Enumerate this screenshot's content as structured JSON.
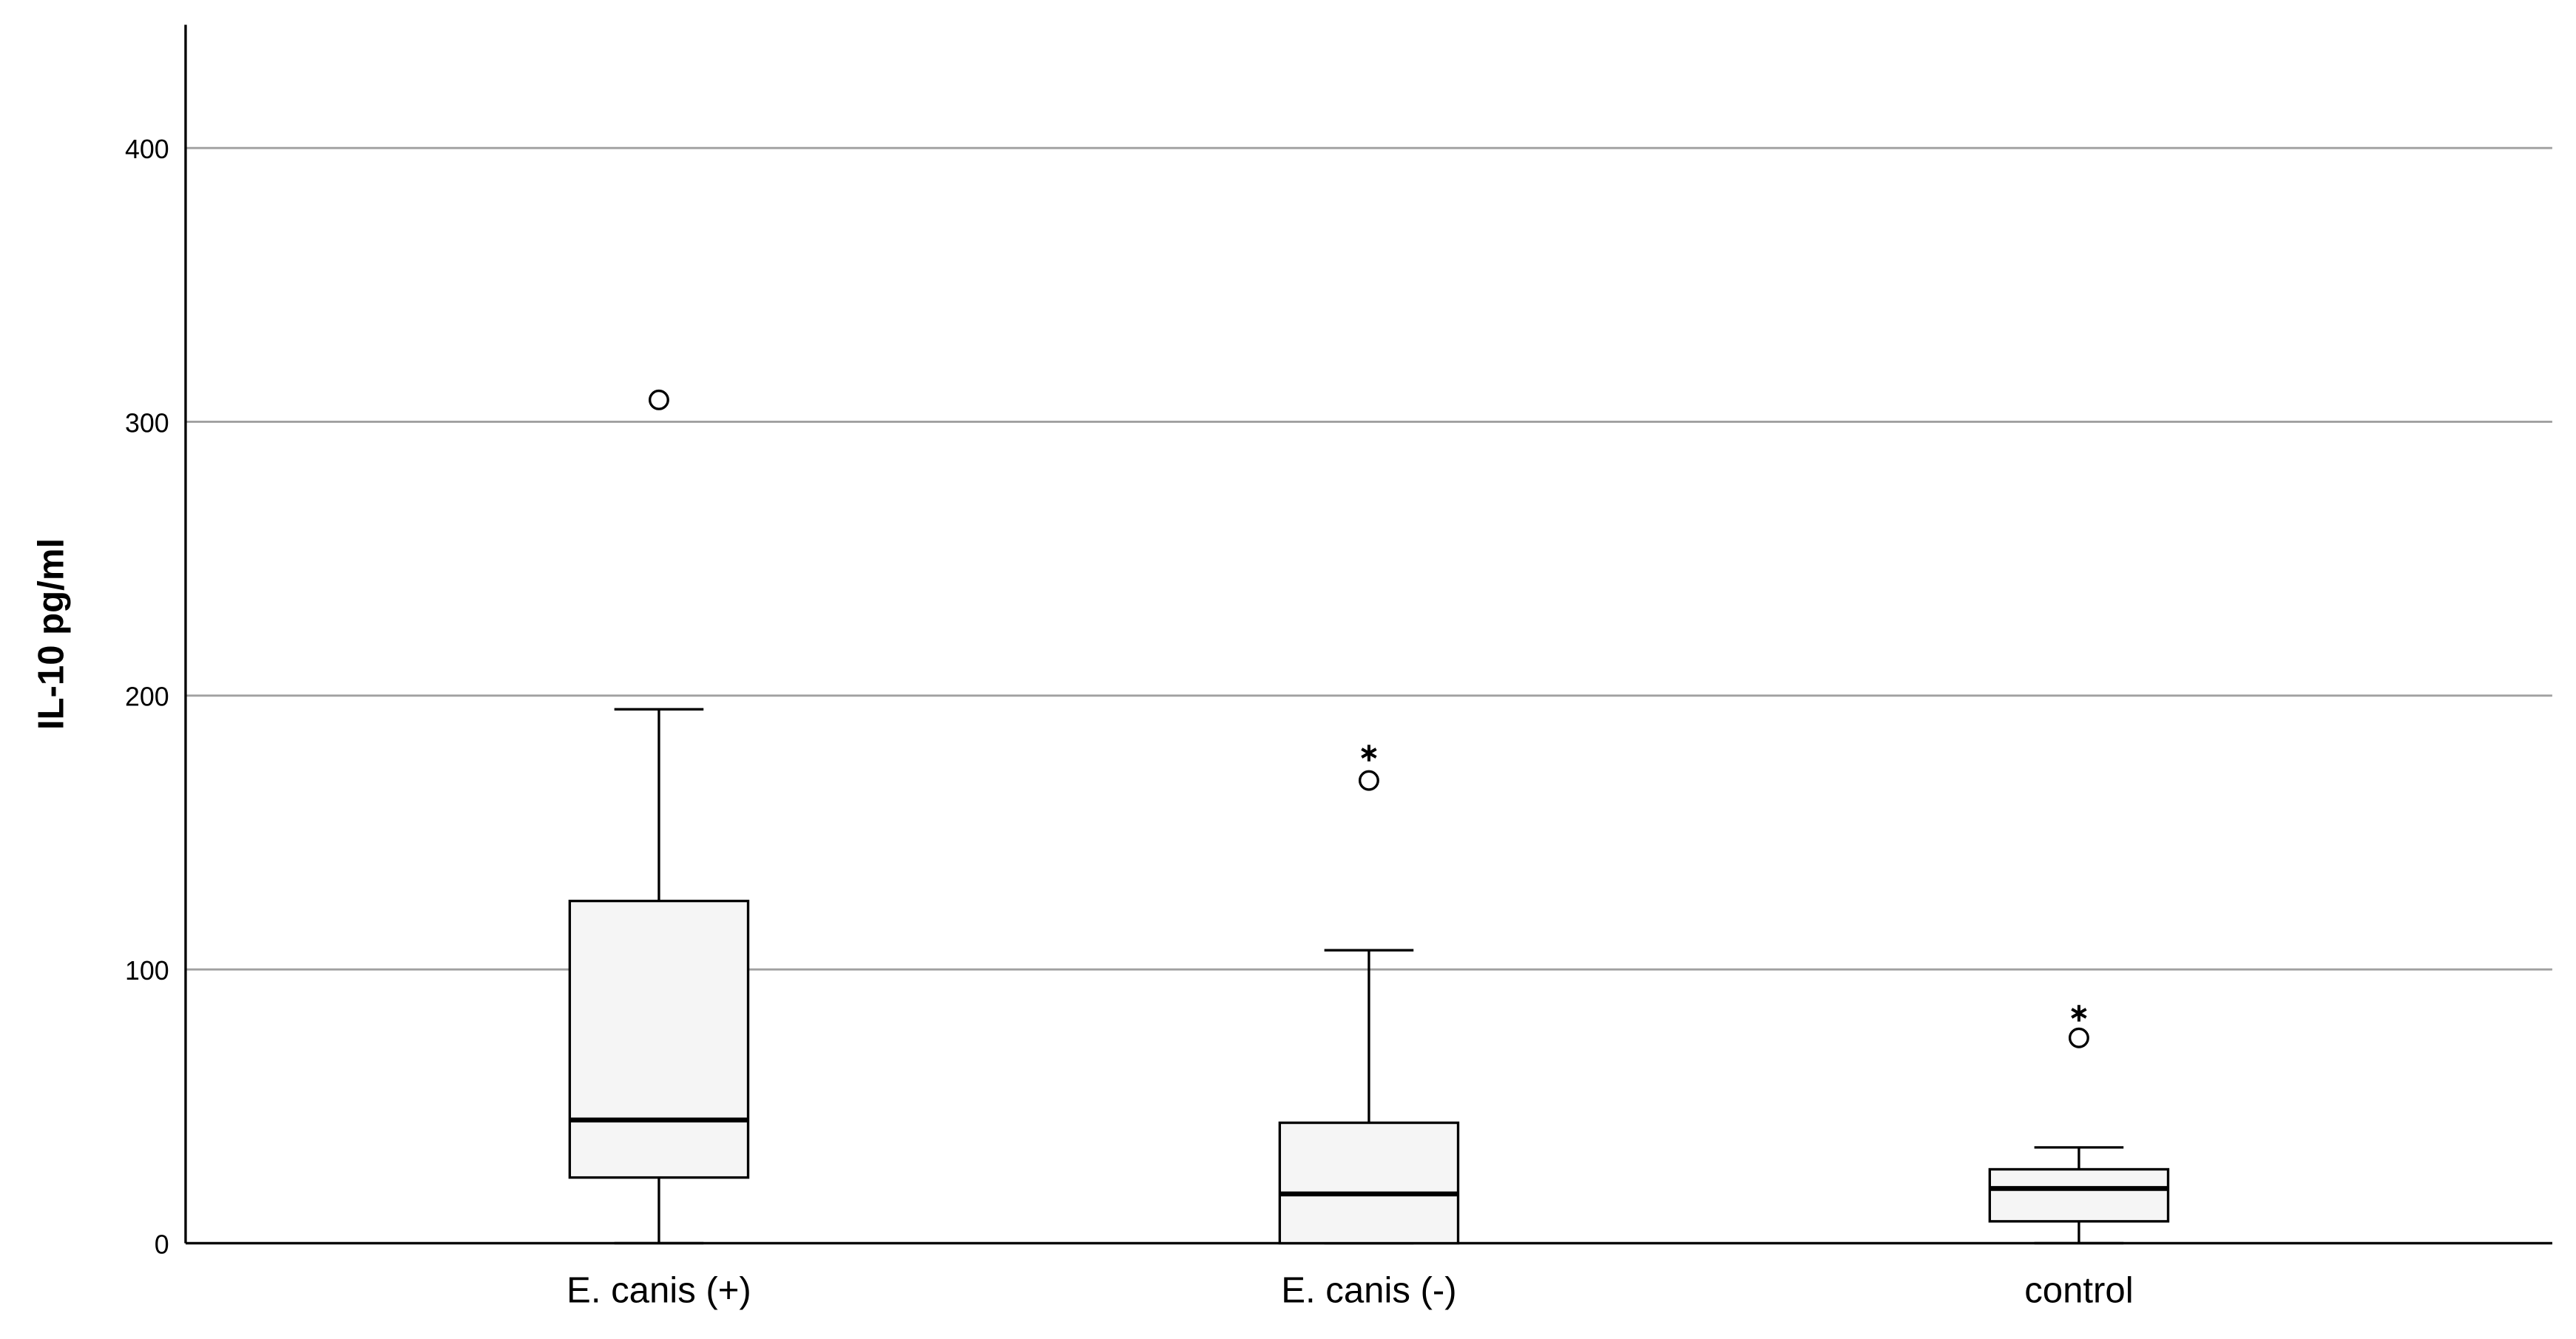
{
  "chart_data": {
    "type": "box",
    "y_label": "IL-10 pg/ml",
    "categories": [
      "E. canis (+)",
      "E. canis (-)",
      "control"
    ],
    "boxes": [
      {
        "min": 0,
        "q1": 24,
        "median": 45,
        "q3": 125,
        "max": 195,
        "outliers": [
          308
        ],
        "extremes": []
      },
      {
        "min": 0,
        "q1": 0,
        "median": 18,
        "q3": 44,
        "max": 107,
        "outliers": [
          169
        ],
        "extremes": [
          179
        ]
      },
      {
        "min": 0,
        "q1": 8,
        "median": 20,
        "q3": 27,
        "max": 35,
        "outliers": [
          75
        ],
        "extremes": [
          84
        ]
      }
    ],
    "color": "#f5f5f5",
    "ylim": [
      0,
      445
    ],
    "yticks": [
      0,
      100,
      200,
      300,
      400
    ],
    "grid": true
  }
}
